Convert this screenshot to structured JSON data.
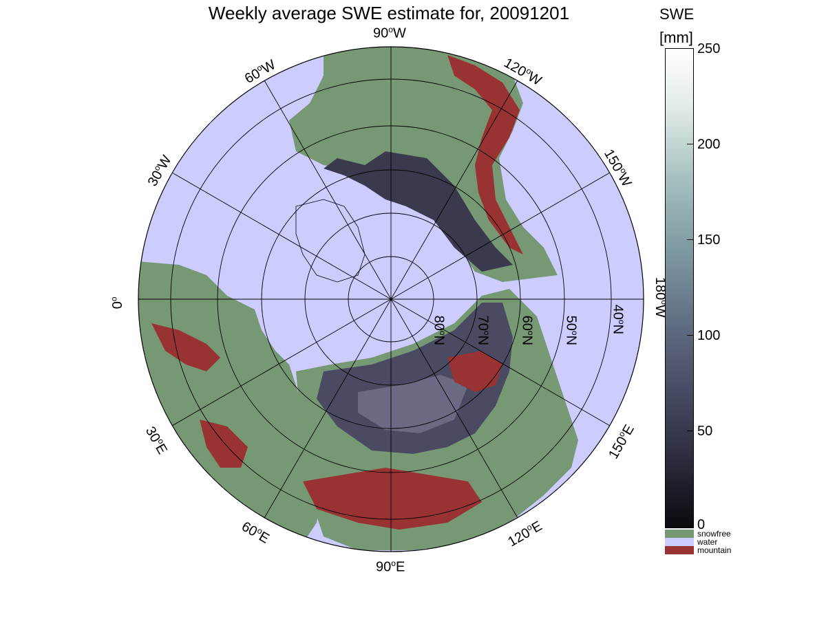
{
  "title": "Weekly average SWE estimate for, 20091201",
  "colorbar": {
    "title_line1": "SWE",
    "title_line2": "[mm]",
    "ticks": [
      "250",
      "200",
      "150",
      "100",
      "50",
      "0"
    ],
    "tick_values": [
      250,
      200,
      150,
      100,
      50,
      0
    ],
    "range": [
      0,
      250
    ],
    "categories": [
      {
        "label": "snowfree",
        "color": "#769973"
      },
      {
        "label": "water",
        "color": "#ccccff"
      },
      {
        "label": "mountain",
        "color": "#993333"
      }
    ]
  },
  "longitude_labels": {
    "lon_90w": "90",
    "lon_120w": "120",
    "lon_150w": "150",
    "lon_180w": "180",
    "lon_150e": "150",
    "lon_120e": "120",
    "lon_90e": "90",
    "lon_60e": "60",
    "lon_30e": "30",
    "lon_0": "0",
    "lon_30w": "30",
    "lon_60w": "60",
    "deg": "o",
    "W": "W",
    "E": "E"
  },
  "latitude_labels": [
    "80",
    "70",
    "60",
    "50",
    "40"
  ],
  "lat_suffix": "N",
  "colors": {
    "water": "#ccccff",
    "snowfree": "#769973",
    "mountain": "#993333",
    "snow_dark": "#2a2a3a",
    "snow_mid": "#55556e"
  }
}
